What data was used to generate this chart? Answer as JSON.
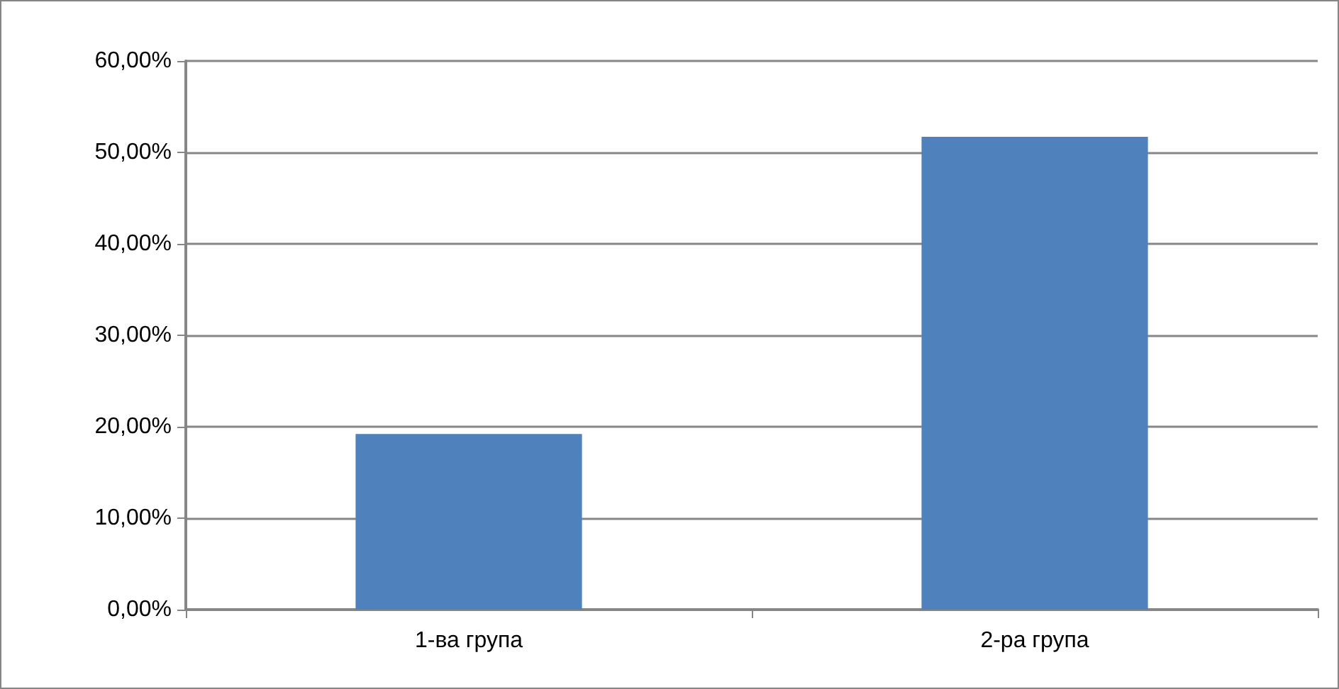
{
  "chart_data": {
    "type": "bar",
    "categories": [
      "1-ва група",
      "2-ра група"
    ],
    "values": [
      19.2,
      51.7
    ],
    "color": "#4f81bd",
    "ylim": [
      0,
      60
    ],
    "yticks": [
      {
        "value": 0,
        "label": "0,00%"
      },
      {
        "value": 10,
        "label": "10,00%"
      },
      {
        "value": 20,
        "label": "20,00%"
      },
      {
        "value": 30,
        "label": "30,00%"
      },
      {
        "value": 40,
        "label": "40,00%"
      },
      {
        "value": 50,
        "label": "50,00%"
      },
      {
        "value": 60,
        "label": "60,00%"
      }
    ],
    "grid": "y"
  }
}
